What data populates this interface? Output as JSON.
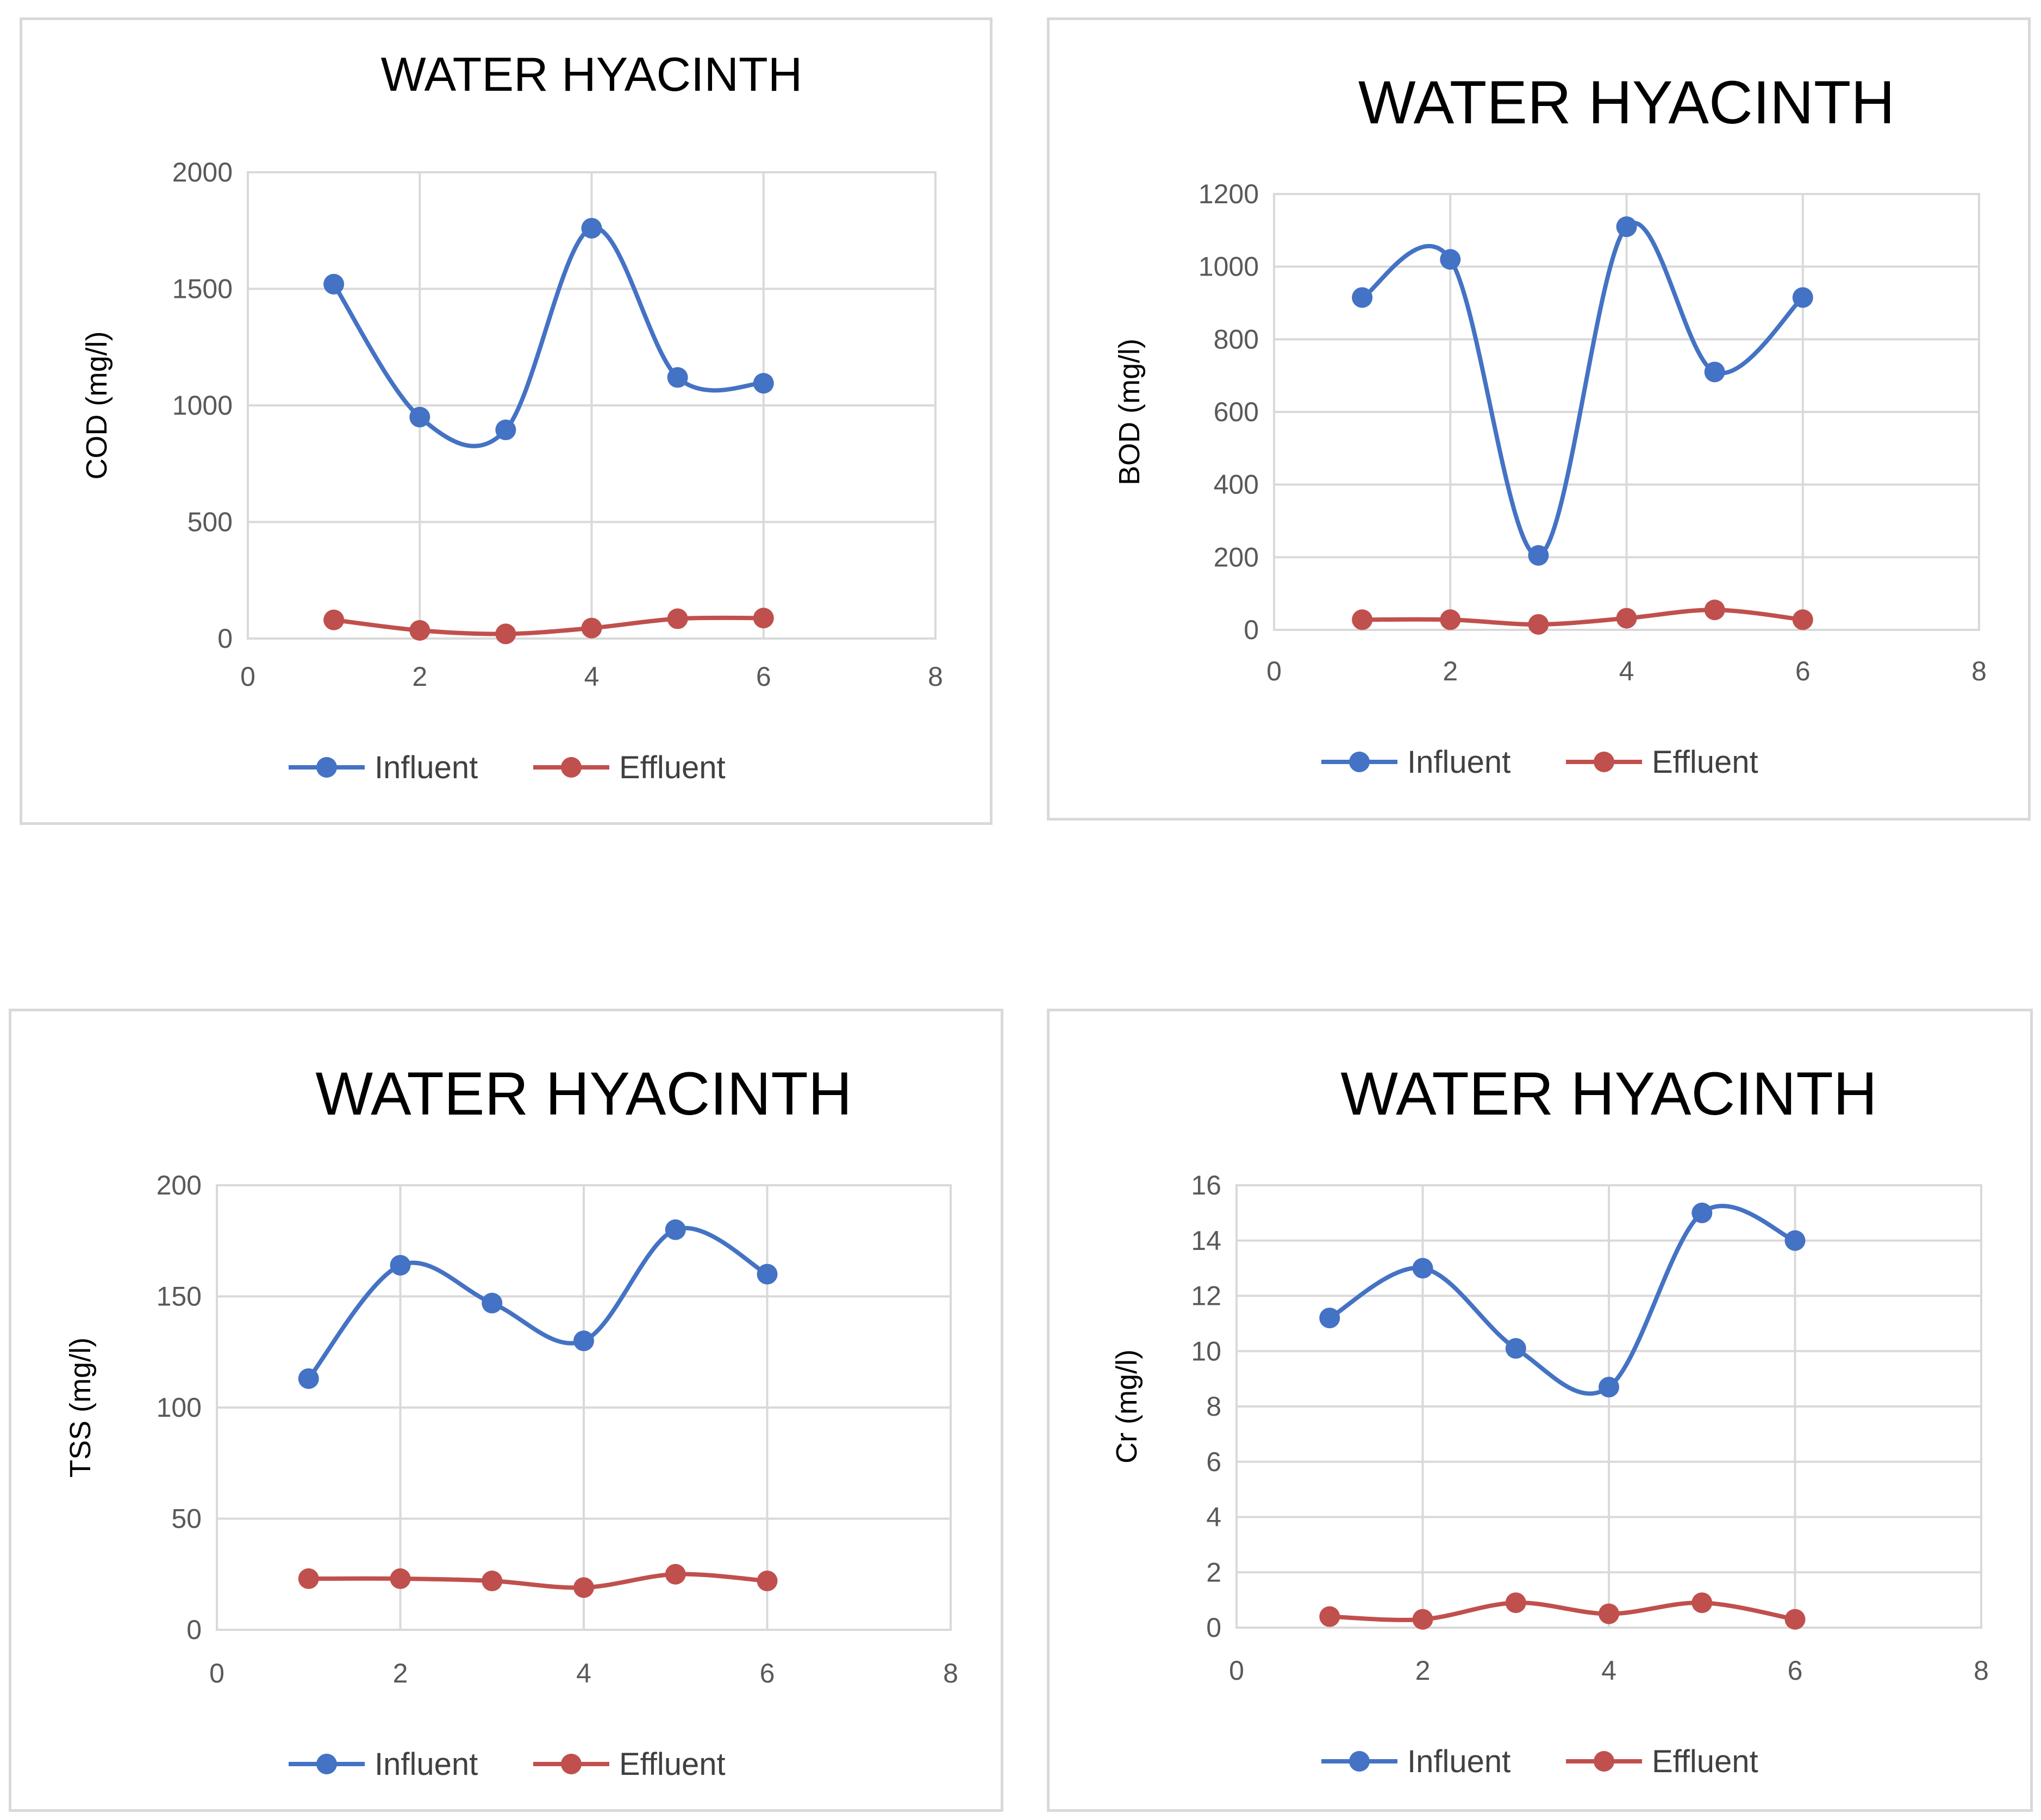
{
  "colors": {
    "influent": "#4472C4",
    "effluent": "#C0504D",
    "grid": "#D9D9D9",
    "tick_text": "#595959"
  },
  "legend": {
    "influent_label": "Influent",
    "effluent_label": "Effluent"
  },
  "chart_data": [
    {
      "type": "line",
      "title": "WATER HYACINTH",
      "xlabel": "",
      "ylabel": "COD (mg/l)",
      "xlim": [
        0,
        8
      ],
      "ylim": [
        0,
        2000
      ],
      "xticks": [
        0,
        2,
        4,
        6,
        8
      ],
      "yticks": [
        0,
        500,
        1000,
        1500,
        2000
      ],
      "grid": true,
      "legend_position": "bottom",
      "series": [
        {
          "name": "Influent",
          "x": [
            1,
            2,
            3,
            4,
            5,
            6
          ],
          "values": [
            1520,
            950,
            895,
            1760,
            1120,
            1095
          ]
        },
        {
          "name": "Effluent",
          "x": [
            1,
            2,
            3,
            4,
            5,
            6
          ],
          "values": [
            80,
            35,
            20,
            45,
            85,
            88
          ]
        }
      ]
    },
    {
      "type": "line",
      "title": "WATER HYACINTH",
      "xlabel": "",
      "ylabel": "BOD (mg/l)",
      "xlim": [
        0,
        8
      ],
      "ylim": [
        0,
        1200
      ],
      "xticks": [
        0,
        2,
        4,
        6,
        8
      ],
      "yticks": [
        0,
        200,
        400,
        600,
        800,
        1000,
        1200
      ],
      "grid": true,
      "legend_position": "bottom",
      "series": [
        {
          "name": "Influent",
          "x": [
            1,
            2,
            3,
            4,
            5,
            6
          ],
          "values": [
            915,
            1020,
            205,
            1110,
            710,
            915
          ]
        },
        {
          "name": "Effluent",
          "x": [
            1,
            2,
            3,
            4,
            5,
            6
          ],
          "values": [
            28,
            28,
            15,
            32,
            55,
            28
          ]
        }
      ]
    },
    {
      "type": "line",
      "title": "WATER HYACINTH",
      "xlabel": "",
      "ylabel": "TSS (mg/l)",
      "xlim": [
        0,
        8
      ],
      "ylim": [
        0,
        200
      ],
      "xticks": [
        0,
        2,
        4,
        6,
        8
      ],
      "yticks": [
        0,
        50,
        100,
        150,
        200
      ],
      "grid": true,
      "legend_position": "bottom",
      "series": [
        {
          "name": "Influent",
          "x": [
            1,
            2,
            3,
            4,
            5,
            6
          ],
          "values": [
            113,
            164,
            147,
            130,
            180,
            160
          ]
        },
        {
          "name": "Effluent",
          "x": [
            1,
            2,
            3,
            4,
            5,
            6
          ],
          "values": [
            23,
            23,
            22,
            19,
            25,
            22
          ]
        }
      ]
    },
    {
      "type": "line",
      "title": "WATER HYACINTH",
      "xlabel": "",
      "ylabel": "Cr (mg/l)",
      "xlim": [
        0,
        8
      ],
      "ylim": [
        0,
        16
      ],
      "xticks": [
        0,
        2,
        4,
        6,
        8
      ],
      "yticks": [
        0,
        2,
        4,
        6,
        8,
        10,
        12,
        14,
        16
      ],
      "grid": true,
      "legend_position": "bottom",
      "series": [
        {
          "name": "Influent",
          "x": [
            1,
            2,
            3,
            4,
            5,
            6
          ],
          "values": [
            11.2,
            13.0,
            10.1,
            8.7,
            15.0,
            14.0
          ]
        },
        {
          "name": "Effluent",
          "x": [
            1,
            2,
            3,
            4,
            5,
            6
          ],
          "values": [
            0.4,
            0.3,
            0.9,
            0.5,
            0.9,
            0.3
          ]
        }
      ]
    }
  ]
}
